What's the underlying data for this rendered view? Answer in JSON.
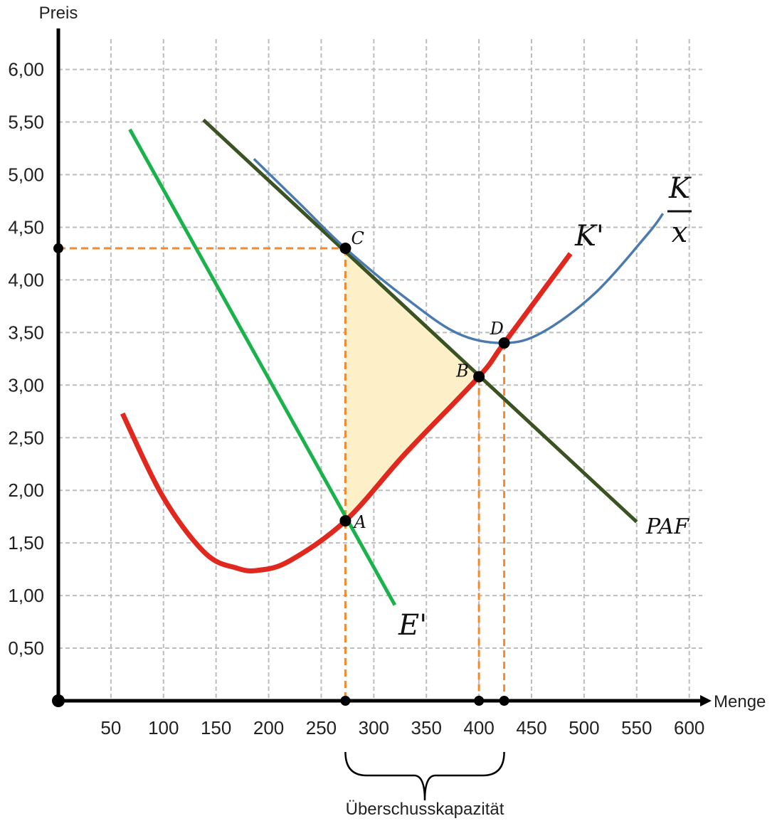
{
  "chart_data": {
    "type": "line",
    "xlabel": "Menge",
    "ylabel": "Preis",
    "xlim": [
      0,
      610
    ],
    "ylim": [
      0,
      6.25
    ],
    "grid": true,
    "x_ticks": [
      50,
      100,
      150,
      200,
      250,
      300,
      350,
      400,
      450,
      500,
      550,
      600
    ],
    "x_tick_labels": [
      "50",
      "100",
      "150",
      "200",
      "250",
      "300",
      "350",
      "400",
      "450",
      "500",
      "550",
      "600"
    ],
    "y_ticks": [
      0.5,
      1.0,
      1.5,
      2.0,
      2.5,
      3.0,
      3.5,
      4.0,
      4.5,
      5.0,
      5.5,
      6.0
    ],
    "y_tick_labels": [
      "0,50",
      "1,00",
      "1,50",
      "2,00",
      "2,50",
      "3,00",
      "3,50",
      "4,00",
      "4,50",
      "5,00",
      "5,50",
      "6,00"
    ],
    "series": [
      {
        "name": "PAF",
        "color": "#3b5323",
        "x": [
          138,
          550
        ],
        "y": [
          5.52,
          1.7
        ]
      },
      {
        "name": "E'",
        "color": "#19b24b",
        "x": [
          68,
          320
        ],
        "y": [
          5.43,
          0.91
        ]
      },
      {
        "name": "K'",
        "color": "#e0281e",
        "x": [
          61,
          100,
          140,
          170,
          190,
          220,
          273,
          330,
          400,
          424,
          487
        ],
        "y": [
          2.73,
          1.93,
          1.4,
          1.26,
          1.24,
          1.33,
          1.71,
          2.35,
          3.08,
          3.4,
          4.25
        ]
      },
      {
        "name": "K/x",
        "color": "#4a7aaf",
        "x": [
          186,
          230,
          273,
          330,
          380,
          424,
          460,
          510,
          560,
          575
        ],
        "y": [
          5.15,
          4.72,
          4.3,
          3.83,
          3.49,
          3.4,
          3.5,
          3.87,
          4.43,
          4.63
        ]
      }
    ],
    "points": [
      {
        "label": "A",
        "x": 273,
        "y": 1.71
      },
      {
        "label": "B",
        "x": 400,
        "y": 3.08
      },
      {
        "label": "C",
        "x": 273,
        "y": 4.3
      },
      {
        "label": "D",
        "x": 424,
        "y": 3.4
      }
    ],
    "reference_lines": {
      "price_level": 4.3,
      "quantities": [
        273,
        400,
        424
      ]
    },
    "shaded_region": {
      "color": "#fdf0c8",
      "x": [
        273,
        273,
        400,
        330
      ],
      "y": [
        4.3,
        1.71,
        3.08,
        2.35
      ]
    },
    "brace_label": "Überschusskapazität",
    "brace_range": [
      273,
      424
    ],
    "colors": {
      "axis": "#000000",
      "grid": "#bdbdbd",
      "reference": "#ef8a33",
      "point": "#000000"
    }
  }
}
